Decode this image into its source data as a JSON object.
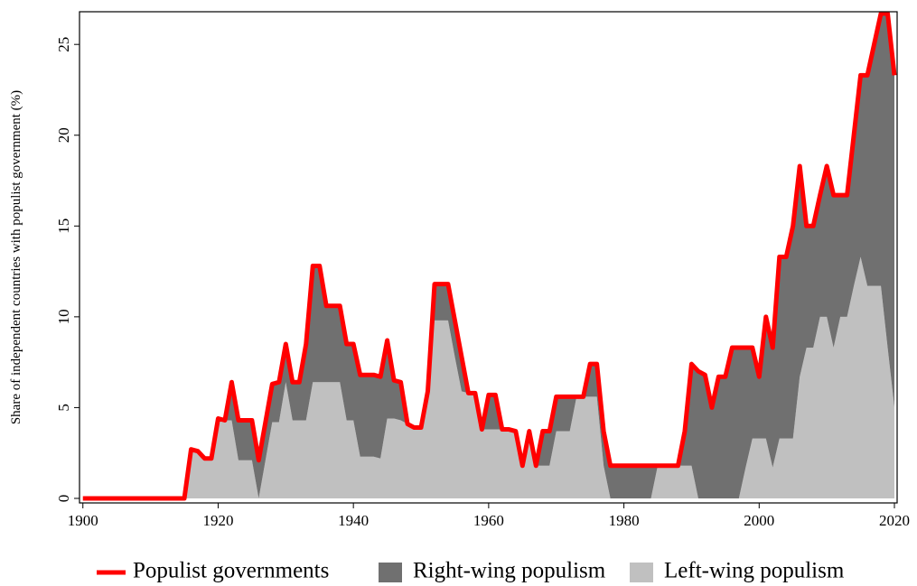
{
  "chart_data": {
    "type": "area",
    "y_label": "Share of independent countries with populist government (%)",
    "x": [
      1900,
      1901,
      1902,
      1903,
      1904,
      1905,
      1906,
      1907,
      1908,
      1909,
      1910,
      1911,
      1912,
      1913,
      1914,
      1915,
      1916,
      1917,
      1918,
      1919,
      1920,
      1921,
      1922,
      1923,
      1924,
      1925,
      1926,
      1927,
      1928,
      1929,
      1930,
      1931,
      1932,
      1933,
      1934,
      1935,
      1936,
      1937,
      1938,
      1939,
      1940,
      1941,
      1942,
      1943,
      1944,
      1945,
      1946,
      1947,
      1948,
      1949,
      1950,
      1951,
      1952,
      1953,
      1954,
      1955,
      1956,
      1957,
      1958,
      1959,
      1960,
      1961,
      1962,
      1963,
      1964,
      1965,
      1966,
      1967,
      1968,
      1969,
      1970,
      1971,
      1972,
      1973,
      1974,
      1975,
      1976,
      1977,
      1978,
      1979,
      1980,
      1981,
      1982,
      1983,
      1984,
      1985,
      1986,
      1987,
      1988,
      1989,
      1990,
      1991,
      1992,
      1993,
      1994,
      1995,
      1996,
      1997,
      1998,
      1999,
      2000,
      2001,
      2002,
      2003,
      2004,
      2005,
      2006,
      2007,
      2008,
      2009,
      2010,
      2011,
      2012,
      2013,
      2014,
      2015,
      2016,
      2017,
      2018,
      2019,
      2020
    ],
    "series": [
      {
        "name": "Populist governments",
        "kind": "line",
        "color": "#ff0000",
        "values": [
          0,
          0,
          0,
          0,
          0,
          0,
          0,
          0,
          0,
          0,
          0,
          0,
          0,
          0,
          0,
          0,
          2.7,
          2.6,
          2.2,
          2.2,
          4.4,
          4.3,
          6.4,
          4.3,
          4.3,
          4.3,
          2.1,
          4.2,
          6.3,
          6.4,
          8.5,
          6.4,
          6.4,
          8.5,
          12.8,
          12.8,
          10.6,
          10.6,
          10.6,
          8.5,
          8.5,
          6.8,
          6.8,
          6.8,
          6.7,
          8.7,
          6.5,
          6.4,
          4.1,
          3.9,
          3.9,
          5.9,
          11.8,
          11.8,
          11.8,
          9.8,
          7.8,
          5.8,
          5.8,
          3.8,
          5.7,
          5.7,
          3.8,
          3.8,
          3.7,
          1.8,
          3.7,
          1.8,
          3.7,
          3.7,
          5.6,
          5.6,
          5.6,
          5.6,
          5.6,
          7.4,
          7.4,
          3.7,
          1.8,
          1.8,
          1.8,
          1.8,
          1.8,
          1.8,
          1.8,
          1.8,
          1.8,
          1.8,
          1.8,
          3.7,
          7.4,
          7.0,
          6.8,
          5.0,
          6.7,
          6.7,
          8.3,
          8.3,
          8.3,
          8.3,
          6.7,
          10.0,
          8.3,
          13.3,
          13.3,
          15.0,
          18.3,
          15.0,
          15.0,
          16.7,
          18.3,
          16.7,
          16.7,
          16.7,
          20.0,
          23.3,
          23.3,
          25.0,
          26.7,
          26.7,
          23.3
        ]
      },
      {
        "name": "Right-wing populism",
        "kind": "area",
        "color": "#707070",
        "values": [
          0,
          0,
          0,
          0,
          0,
          0,
          0,
          0,
          0,
          0,
          0,
          0,
          0,
          0,
          0,
          0,
          0,
          0,
          0,
          0,
          0,
          0,
          2.1,
          2.2,
          2.2,
          2.2,
          2.1,
          2.1,
          2.1,
          2.2,
          2.1,
          2.1,
          2.1,
          4.2,
          6.4,
          6.4,
          4.2,
          4.2,
          4.2,
          4.2,
          4.2,
          4.5,
          4.5,
          4.5,
          4.5,
          4.3,
          2.1,
          2.1,
          0,
          0,
          0,
          0,
          2.0,
          2.0,
          2.0,
          2.0,
          1.9,
          0,
          0,
          0,
          1.9,
          1.9,
          0,
          0,
          0,
          0,
          0,
          0,
          1.9,
          1.9,
          1.9,
          1.9,
          1.9,
          0,
          0,
          1.8,
          1.8,
          1.9,
          1.8,
          1.8,
          1.8,
          1.8,
          1.8,
          1.8,
          1.8,
          0,
          0,
          0,
          0,
          1.9,
          5.6,
          7.0,
          6.8,
          5.0,
          6.7,
          6.7,
          8.3,
          8.3,
          6.6,
          5.0,
          3.4,
          6.7,
          6.6,
          10.0,
          10.0,
          11.7,
          11.6,
          6.7,
          6.7,
          6.7,
          8.3,
          8.4,
          6.7,
          6.7,
          8.3,
          10.0,
          11.6,
          13.3,
          15.0,
          18.4,
          18.3
        ]
      },
      {
        "name": "Left-wing populism",
        "kind": "area",
        "color": "#c0c0c0",
        "values": [
          0,
          0,
          0,
          0,
          0,
          0,
          0,
          0,
          0,
          0,
          0,
          0,
          0,
          0,
          0,
          0,
          2.7,
          2.6,
          2.2,
          2.2,
          4.4,
          4.3,
          4.3,
          2.1,
          2.1,
          2.1,
          0,
          2.1,
          4.2,
          4.2,
          6.4,
          4.3,
          4.3,
          4.3,
          6.4,
          6.4,
          6.4,
          6.4,
          6.4,
          4.3,
          4.3,
          2.3,
          2.3,
          2.3,
          2.2,
          4.4,
          4.4,
          4.3,
          4.1,
          3.9,
          3.9,
          5.9,
          9.8,
          9.8,
          9.8,
          7.8,
          5.9,
          5.8,
          5.8,
          3.8,
          3.8,
          3.8,
          3.8,
          3.8,
          3.7,
          1.8,
          3.7,
          1.8,
          1.8,
          1.8,
          3.7,
          3.7,
          3.7,
          5.6,
          5.6,
          5.6,
          5.6,
          1.8,
          0,
          0,
          0,
          0,
          0,
          0,
          0,
          1.8,
          1.8,
          1.8,
          1.8,
          1.8,
          1.8,
          0,
          0,
          0,
          0,
          0,
          0,
          0,
          1.7,
          3.3,
          3.3,
          3.3,
          1.7,
          3.3,
          3.3,
          3.3,
          6.7,
          8.3,
          8.3,
          10.0,
          10.0,
          8.3,
          10.0,
          10.0,
          11.7,
          13.3,
          11.7,
          11.7,
          11.7,
          8.3,
          5.0
        ]
      }
    ],
    "xlim": [
      1899.5,
      2020.4
    ],
    "ylim": [
      -0.25,
      26.8
    ],
    "xticks": [
      1900,
      1920,
      1940,
      1960,
      1980,
      2000,
      2020
    ],
    "yticks": [
      0,
      5,
      10,
      15,
      20,
      25
    ],
    "legend": "bottom"
  }
}
